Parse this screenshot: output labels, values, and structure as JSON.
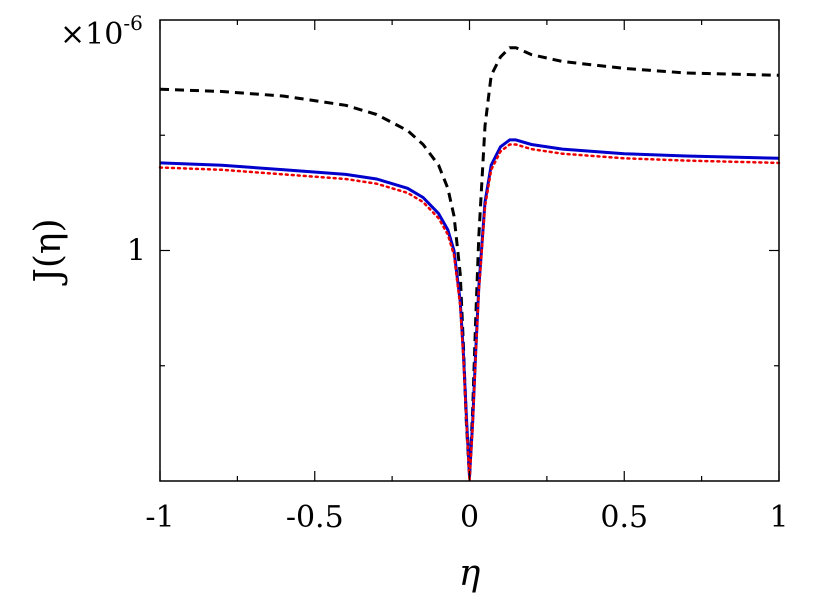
{
  "chart_data": {
    "type": "line",
    "title": "",
    "xlabel": "η",
    "ylabel": "J(η)",
    "y_multiplier": {
      "base": "×10",
      "exponent": "-6"
    },
    "xlim": [
      -1,
      1
    ],
    "ylim": [
      0,
      2
    ],
    "x_ticks": [
      {
        "value": -1,
        "label": "-1"
      },
      {
        "value": -0.5,
        "label": "-0.5"
      },
      {
        "value": 0,
        "label": "0"
      },
      {
        "value": 0.5,
        "label": "0.5"
      },
      {
        "value": 1,
        "label": "1"
      }
    ],
    "y_ticks": [
      {
        "value": 1,
        "label": "1"
      }
    ],
    "legend": "none",
    "grid": false,
    "series": [
      {
        "color": "#000000",
        "style": "dashed",
        "points": [
          [
            -1,
            1.7
          ],
          [
            -0.8,
            1.69
          ],
          [
            -0.6,
            1.67
          ],
          [
            -0.4,
            1.63
          ],
          [
            -0.3,
            1.59
          ],
          [
            -0.2,
            1.52
          ],
          [
            -0.15,
            1.46
          ],
          [
            -0.1,
            1.37
          ],
          [
            -0.07,
            1.27
          ],
          [
            -0.05,
            1.15
          ],
          [
            -0.03,
            0.9
          ],
          [
            -0.02,
            0.6
          ],
          [
            -0.01,
            0.25
          ],
          [
            0,
            0.02
          ],
          [
            0.01,
            0.3
          ],
          [
            0.02,
            0.7
          ],
          [
            0.03,
            1.06
          ],
          [
            0.05,
            1.54
          ],
          [
            0.07,
            1.76
          ],
          [
            0.1,
            1.84
          ],
          [
            0.13,
            1.88
          ],
          [
            0.15,
            1.88
          ],
          [
            0.2,
            1.85
          ],
          [
            0.3,
            1.82
          ],
          [
            0.5,
            1.79
          ],
          [
            0.7,
            1.77
          ],
          [
            1,
            1.76
          ]
        ]
      },
      {
        "color": "#0000cc",
        "style": "solid",
        "points": [
          [
            -1,
            1.38
          ],
          [
            -0.8,
            1.37
          ],
          [
            -0.6,
            1.35
          ],
          [
            -0.4,
            1.33
          ],
          [
            -0.3,
            1.31
          ],
          [
            -0.2,
            1.27
          ],
          [
            -0.15,
            1.23
          ],
          [
            -0.1,
            1.16
          ],
          [
            -0.07,
            1.09
          ],
          [
            -0.05,
            1.0
          ],
          [
            -0.03,
            0.78
          ],
          [
            -0.02,
            0.56
          ],
          [
            -0.01,
            0.28
          ],
          [
            0,
            0.02
          ],
          [
            0.01,
            0.25
          ],
          [
            0.02,
            0.56
          ],
          [
            0.03,
            0.84
          ],
          [
            0.05,
            1.21
          ],
          [
            0.07,
            1.37
          ],
          [
            0.1,
            1.45
          ],
          [
            0.13,
            1.48
          ],
          [
            0.15,
            1.48
          ],
          [
            0.2,
            1.46
          ],
          [
            0.3,
            1.44
          ],
          [
            0.5,
            1.42
          ],
          [
            0.7,
            1.41
          ],
          [
            1,
            1.4
          ]
        ]
      },
      {
        "color": "#ee0000",
        "style": "dotted",
        "points": [
          [
            -1,
            1.36
          ],
          [
            -0.8,
            1.35
          ],
          [
            -0.6,
            1.33
          ],
          [
            -0.4,
            1.31
          ],
          [
            -0.3,
            1.29
          ],
          [
            -0.2,
            1.25
          ],
          [
            -0.15,
            1.21
          ],
          [
            -0.1,
            1.14
          ],
          [
            -0.07,
            1.07
          ],
          [
            -0.05,
            0.98
          ],
          [
            -0.03,
            0.76
          ],
          [
            -0.02,
            0.54
          ],
          [
            -0.01,
            0.26
          ],
          [
            0,
            0.0
          ],
          [
            0.01,
            0.23
          ],
          [
            0.02,
            0.54
          ],
          [
            0.03,
            0.82
          ],
          [
            0.05,
            1.19
          ],
          [
            0.07,
            1.35
          ],
          [
            0.1,
            1.43
          ],
          [
            0.13,
            1.46
          ],
          [
            0.15,
            1.46
          ],
          [
            0.2,
            1.44
          ],
          [
            0.3,
            1.42
          ],
          [
            0.5,
            1.4
          ],
          [
            0.7,
            1.39
          ],
          [
            1,
            1.38
          ]
        ]
      }
    ]
  }
}
